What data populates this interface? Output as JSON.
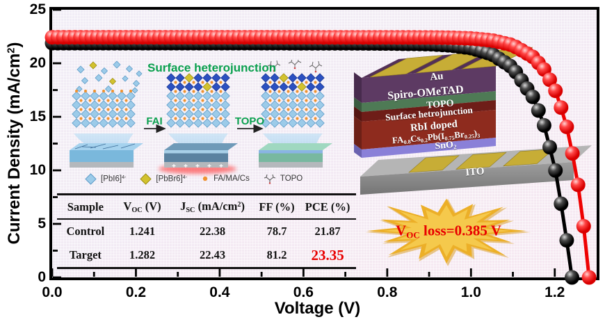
{
  "axes": {
    "xlabel": "Voltage (V)",
    "ylabel_rich": [
      {
        "t": "Current Density (mA/cm"
      },
      {
        "t": "2",
        "sup": true
      },
      {
        "t": ")"
      }
    ]
  },
  "chart_data": {
    "type": "line",
    "title": "",
    "xlabel": "Voltage (V)",
    "ylabel": "Current Density (mA/cm2)",
    "xlim": [
      0,
      1.3
    ],
    "ylim": [
      0,
      25
    ],
    "xtick_values": [
      0,
      0.2,
      0.4,
      0.6,
      0.8,
      1.0,
      1.2
    ],
    "xtick_labels": [
      "0.0",
      "0.2",
      "0.4",
      "0.6",
      "0.8",
      "1.0",
      "1.2"
    ],
    "ytick_values": [
      0,
      5,
      10,
      15,
      20,
      25
    ],
    "ytick_labels": [
      "0",
      "5",
      "10",
      "15",
      "20",
      "25"
    ],
    "minor_x": [
      0.1,
      0.3,
      0.5,
      0.7,
      0.9,
      1.1,
      1.25
    ],
    "minor_y": [
      2.5,
      7.5,
      12.5,
      17.5,
      22.5
    ],
    "grid": false,
    "legend_position": "none",
    "marker_style": "glossy-sphere-chain",
    "series": [
      {
        "name": "Control",
        "color": "#000000",
        "jsc": 22.38,
        "voc": 1.241,
        "ff_pct": 78.7,
        "pce_pct": 21.87,
        "points": [
          [
            0,
            22.38
          ],
          [
            0.1,
            22.38
          ],
          [
            0.2,
            22.38
          ],
          [
            0.3,
            22.38
          ],
          [
            0.4,
            22.38
          ],
          [
            0.5,
            22.38
          ],
          [
            0.6,
            22.37
          ],
          [
            0.7,
            22.37
          ],
          [
            0.8,
            22.35
          ],
          [
            0.9,
            22.29
          ],
          [
            0.95,
            22.17
          ],
          [
            1.0,
            21.92
          ],
          [
            1.05,
            21.35
          ],
          [
            1.1,
            20.08
          ],
          [
            1.15,
            17.22
          ],
          [
            1.175,
            14.65
          ],
          [
            1.2,
            10.83
          ],
          [
            1.225,
            5.08
          ],
          [
            1.241,
            0
          ]
        ]
      },
      {
        "name": "Target",
        "color": "#ee0202",
        "jsc": 22.43,
        "voc": 1.282,
        "ff_pct": 81.2,
        "pce_pct": 23.35,
        "points": [
          [
            0,
            22.43
          ],
          [
            0.1,
            22.43
          ],
          [
            0.2,
            22.43
          ],
          [
            0.3,
            22.43
          ],
          [
            0.4,
            22.43
          ],
          [
            0.5,
            22.43
          ],
          [
            0.6,
            22.43
          ],
          [
            0.7,
            22.42
          ],
          [
            0.8,
            22.42
          ],
          [
            0.9,
            22.41
          ],
          [
            0.95,
            22.39
          ],
          [
            1.0,
            22.32
          ],
          [
            1.05,
            22.14
          ],
          [
            1.1,
            21.69
          ],
          [
            1.15,
            20.54
          ],
          [
            1.175,
            19.4
          ],
          [
            1.2,
            17.6
          ],
          [
            1.225,
            14.71
          ],
          [
            1.25,
            10.11
          ],
          [
            1.265,
            6.12
          ],
          [
            1.275,
            2.76
          ],
          [
            1.282,
            0
          ]
        ]
      }
    ]
  },
  "inset_process": {
    "title": "Surface heterojunction",
    "title_color": "#0aa04e",
    "step1_label": "FAI",
    "step2_label": "TOPO",
    "legend": [
      {
        "icon": "pbi6-octahedron",
        "label_rich": [
          {
            "t": "[PbI6]"
          },
          {
            "t": "4-",
            "sup": true
          }
        ]
      },
      {
        "icon": "pbbr6-octahedron",
        "label_rich": [
          {
            "t": "[PbBr6]"
          },
          {
            "t": "4-",
            "sup": true
          }
        ]
      },
      {
        "icon": "cation-dot",
        "label_rich": [
          {
            "t": "FA/MA/Cs"
          }
        ]
      },
      {
        "icon": "topo-molecule",
        "label_rich": [
          {
            "t": "TOPO"
          }
        ]
      }
    ]
  },
  "table": {
    "headers_rich": [
      [
        {
          "t": "Sample"
        }
      ],
      [
        {
          "t": "V"
        },
        {
          "t": "OC",
          "sub": true
        },
        {
          "t": " (V)"
        }
      ],
      [
        {
          "t": "J"
        },
        {
          "t": "SC",
          "sub": true
        },
        {
          "t": " (mA/cm"
        },
        {
          "t": "2",
          "sup": true
        },
        {
          "t": ")"
        }
      ],
      [
        {
          "t": "FF (%)"
        }
      ],
      [
        {
          "t": "PCE (%)"
        }
      ]
    ],
    "rows": [
      {
        "cells": [
          "Control",
          "1.241",
          "22.38",
          "78.7",
          "21.87"
        ]
      },
      {
        "cells": [
          "Target",
          "1.282",
          "22.43",
          "81.2",
          "23.35"
        ]
      }
    ],
    "highlight_color": "#e80000"
  },
  "device_stack": {
    "layers": [
      {
        "name": "au",
        "label_rich": [
          {
            "t": "Au"
          }
        ],
        "color": "#c7ad36"
      },
      {
        "name": "spiro-ometad",
        "label_rich": [
          {
            "t": "Spiro-OMeTAD"
          }
        ],
        "color": "#5d3a63"
      },
      {
        "name": "topo",
        "label_rich": [
          {
            "t": "TOPO"
          }
        ],
        "color": "#4e7a55"
      },
      {
        "name": "surface-heterojunction",
        "label_rich": [
          {
            "t": "Surface hetrojunction"
          }
        ],
        "color": "#6e1d18"
      },
      {
        "name": "perovskite",
        "label_rich": [
          {
            "t": "RbI doped"
          }
        ],
        "label2_rich": [
          {
            "t": "FA"
          },
          {
            "t": "0.8",
            "sub": true
          },
          {
            "t": "Cs"
          },
          {
            "t": "0.2",
            "sub": true
          },
          {
            "t": "Pb(I"
          },
          {
            "t": "0.75",
            "sub": true
          },
          {
            "t": "Br"
          },
          {
            "t": "0.25",
            "sub": true
          },
          {
            "t": ")"
          },
          {
            "t": "3",
            "sub": true
          }
        ],
        "color": "#8e2b1e"
      },
      {
        "name": "sno2",
        "label_rich": [
          {
            "t": "SnO"
          },
          {
            "t": "2",
            "sub": true
          }
        ],
        "color": "#8a80d8"
      },
      {
        "name": "ito",
        "label_rich": [
          {
            "t": "ITO"
          }
        ],
        "color": "#8c8c8c"
      }
    ]
  },
  "voc_burst": {
    "text_rich": [
      {
        "t": "V"
      },
      {
        "t": "OC",
        "sub": true
      },
      {
        "t": " loss=0.385 V"
      }
    ],
    "text_color": "#e80000",
    "star_color": "#ecaf28"
  }
}
